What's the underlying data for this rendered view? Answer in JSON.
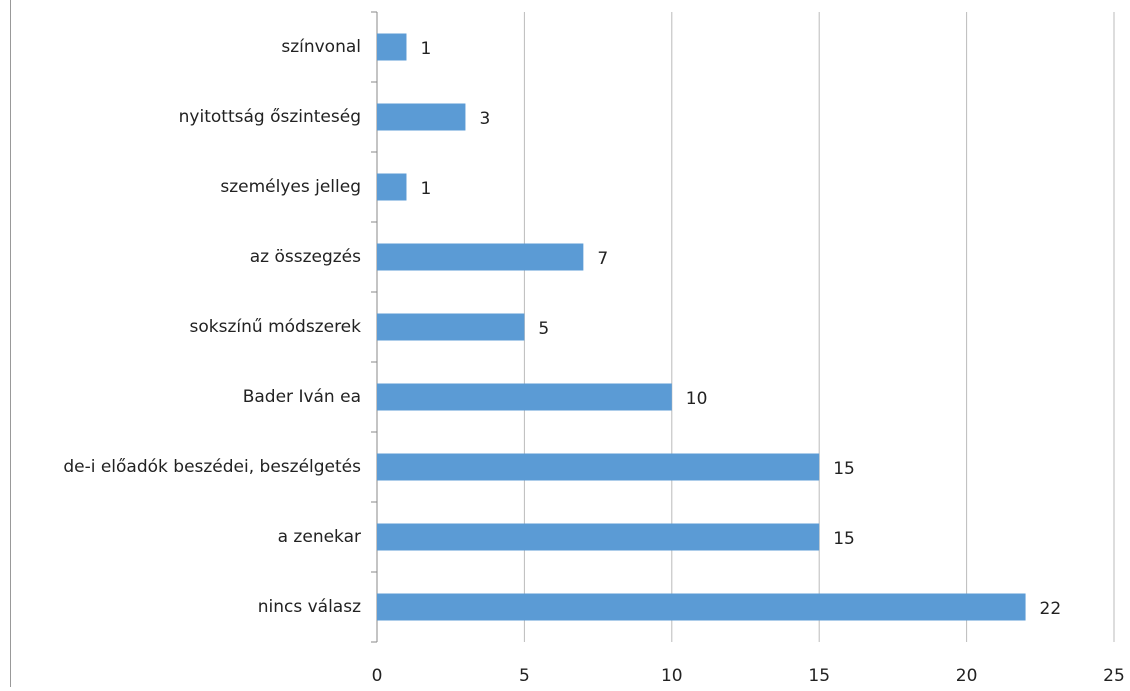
{
  "chart_data": {
    "type": "bar",
    "orientation": "horizontal",
    "categories": [
      "színvonal",
      "nyitottság őszinteség",
      "személyes jelleg",
      "az összegzés",
      "sokszínű módszerek",
      "Bader Iván ea",
      "de-i előadók beszédei, beszélgetés",
      "a zenekar",
      "nincs válasz"
    ],
    "values": [
      1,
      3,
      1,
      7,
      5,
      10,
      15,
      15,
      22
    ],
    "color": "#5b9bd5",
    "xlim": [
      0,
      25
    ],
    "xticks": [
      0,
      5,
      10,
      15,
      20,
      25
    ],
    "grid": true
  }
}
